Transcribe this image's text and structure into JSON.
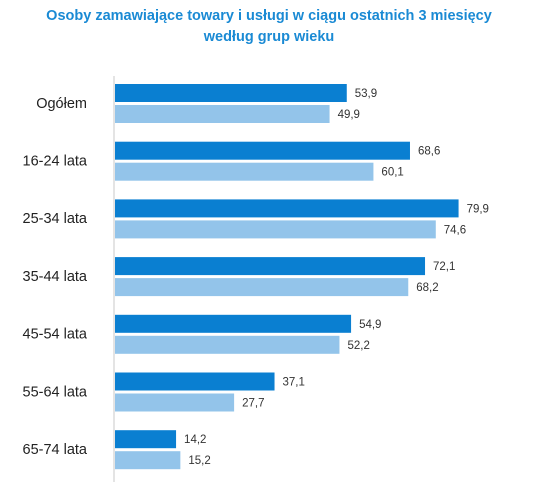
{
  "chart_data": {
    "type": "bar",
    "orientation": "horizontal",
    "title_lines": [
      "Osoby zamawiające towary i usługi w ciągu ostatnich 3 miesięcy",
      "według grup wieku"
    ],
    "categories": [
      "Ogółem",
      "16-24 lata",
      "25-34 lata",
      "35-44 lata",
      "45-54 lata",
      "55-64 lata",
      "65-74 lata"
    ],
    "series": [
      {
        "values": [
          53.9,
          68.6,
          79.9,
          72.1,
          54.9,
          37.1,
          14.2
        ],
        "color": "#0a7fd1"
      },
      {
        "values": [
          49.9,
          60.1,
          74.6,
          68.2,
          52.2,
          27.7,
          15.2
        ],
        "color": "#93c4ea"
      }
    ],
    "value_labels": [
      [
        "53,9",
        "68,6",
        "79,9",
        "72,1",
        "54,9",
        "37,1",
        "14,2"
      ],
      [
        "49,9",
        "60,1",
        "74,6",
        "68,2",
        "52,2",
        "27,7",
        "15,2"
      ]
    ],
    "xlim": [
      0,
      100
    ],
    "grid": false,
    "legend": "none",
    "axis_color": "#c8c8c8"
  }
}
